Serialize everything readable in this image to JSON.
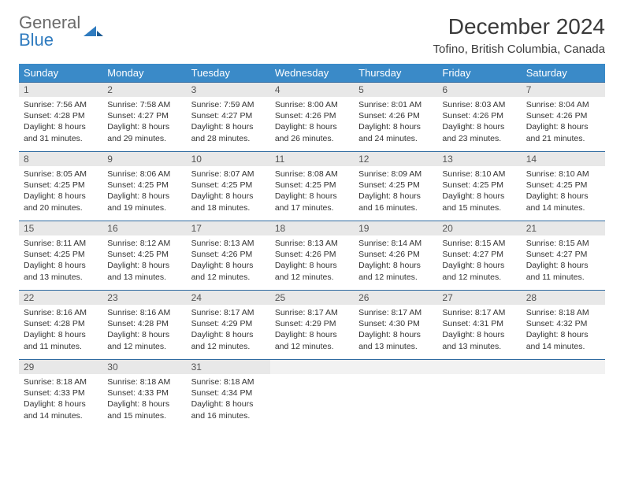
{
  "brand": {
    "line1": "General",
    "line2": "Blue"
  },
  "title": "December 2024",
  "subtitle": "Tofino, British Columbia, Canada",
  "colors": {
    "header_bg": "#3a8ac8",
    "header_text": "#ffffff",
    "daynum_bg": "#e8e8e8",
    "row_border": "#2f6aa0",
    "logo_gray": "#6b6b6b",
    "logo_blue": "#2f7bbf"
  },
  "typography": {
    "title_fontsize": 28,
    "subtitle_fontsize": 15,
    "header_fontsize": 13,
    "daynum_fontsize": 12,
    "body_fontsize": 10.5
  },
  "weekdays": [
    "Sunday",
    "Monday",
    "Tuesday",
    "Wednesday",
    "Thursday",
    "Friday",
    "Saturday"
  ],
  "weeks": [
    [
      {
        "n": "1",
        "sunrise": "7:56 AM",
        "sunset": "4:28 PM",
        "daylight": "8 hours and 31 minutes."
      },
      {
        "n": "2",
        "sunrise": "7:58 AM",
        "sunset": "4:27 PM",
        "daylight": "8 hours and 29 minutes."
      },
      {
        "n": "3",
        "sunrise": "7:59 AM",
        "sunset": "4:27 PM",
        "daylight": "8 hours and 28 minutes."
      },
      {
        "n": "4",
        "sunrise": "8:00 AM",
        "sunset": "4:26 PM",
        "daylight": "8 hours and 26 minutes."
      },
      {
        "n": "5",
        "sunrise": "8:01 AM",
        "sunset": "4:26 PM",
        "daylight": "8 hours and 24 minutes."
      },
      {
        "n": "6",
        "sunrise": "8:03 AM",
        "sunset": "4:26 PM",
        "daylight": "8 hours and 23 minutes."
      },
      {
        "n": "7",
        "sunrise": "8:04 AM",
        "sunset": "4:26 PM",
        "daylight": "8 hours and 21 minutes."
      }
    ],
    [
      {
        "n": "8",
        "sunrise": "8:05 AM",
        "sunset": "4:25 PM",
        "daylight": "8 hours and 20 minutes."
      },
      {
        "n": "9",
        "sunrise": "8:06 AM",
        "sunset": "4:25 PM",
        "daylight": "8 hours and 19 minutes."
      },
      {
        "n": "10",
        "sunrise": "8:07 AM",
        "sunset": "4:25 PM",
        "daylight": "8 hours and 18 minutes."
      },
      {
        "n": "11",
        "sunrise": "8:08 AM",
        "sunset": "4:25 PM",
        "daylight": "8 hours and 17 minutes."
      },
      {
        "n": "12",
        "sunrise": "8:09 AM",
        "sunset": "4:25 PM",
        "daylight": "8 hours and 16 minutes."
      },
      {
        "n": "13",
        "sunrise": "8:10 AM",
        "sunset": "4:25 PM",
        "daylight": "8 hours and 15 minutes."
      },
      {
        "n": "14",
        "sunrise": "8:10 AM",
        "sunset": "4:25 PM",
        "daylight": "8 hours and 14 minutes."
      }
    ],
    [
      {
        "n": "15",
        "sunrise": "8:11 AM",
        "sunset": "4:25 PM",
        "daylight": "8 hours and 13 minutes."
      },
      {
        "n": "16",
        "sunrise": "8:12 AM",
        "sunset": "4:25 PM",
        "daylight": "8 hours and 13 minutes."
      },
      {
        "n": "17",
        "sunrise": "8:13 AM",
        "sunset": "4:26 PM",
        "daylight": "8 hours and 12 minutes."
      },
      {
        "n": "18",
        "sunrise": "8:13 AM",
        "sunset": "4:26 PM",
        "daylight": "8 hours and 12 minutes."
      },
      {
        "n": "19",
        "sunrise": "8:14 AM",
        "sunset": "4:26 PM",
        "daylight": "8 hours and 12 minutes."
      },
      {
        "n": "20",
        "sunrise": "8:15 AM",
        "sunset": "4:27 PM",
        "daylight": "8 hours and 12 minutes."
      },
      {
        "n": "21",
        "sunrise": "8:15 AM",
        "sunset": "4:27 PM",
        "daylight": "8 hours and 11 minutes."
      }
    ],
    [
      {
        "n": "22",
        "sunrise": "8:16 AM",
        "sunset": "4:28 PM",
        "daylight": "8 hours and 11 minutes."
      },
      {
        "n": "23",
        "sunrise": "8:16 AM",
        "sunset": "4:28 PM",
        "daylight": "8 hours and 12 minutes."
      },
      {
        "n": "24",
        "sunrise": "8:17 AM",
        "sunset": "4:29 PM",
        "daylight": "8 hours and 12 minutes."
      },
      {
        "n": "25",
        "sunrise": "8:17 AM",
        "sunset": "4:29 PM",
        "daylight": "8 hours and 12 minutes."
      },
      {
        "n": "26",
        "sunrise": "8:17 AM",
        "sunset": "4:30 PM",
        "daylight": "8 hours and 13 minutes."
      },
      {
        "n": "27",
        "sunrise": "8:17 AM",
        "sunset": "4:31 PM",
        "daylight": "8 hours and 13 minutes."
      },
      {
        "n": "28",
        "sunrise": "8:18 AM",
        "sunset": "4:32 PM",
        "daylight": "8 hours and 14 minutes."
      }
    ],
    [
      {
        "n": "29",
        "sunrise": "8:18 AM",
        "sunset": "4:33 PM",
        "daylight": "8 hours and 14 minutes."
      },
      {
        "n": "30",
        "sunrise": "8:18 AM",
        "sunset": "4:33 PM",
        "daylight": "8 hours and 15 minutes."
      },
      {
        "n": "31",
        "sunrise": "8:18 AM",
        "sunset": "4:34 PM",
        "daylight": "8 hours and 16 minutes."
      },
      {
        "empty": true
      },
      {
        "empty": true
      },
      {
        "empty": true
      },
      {
        "empty": true
      }
    ]
  ],
  "labels": {
    "sunrise_prefix": "Sunrise: ",
    "sunset_prefix": "Sunset: ",
    "daylight_prefix": "Daylight: "
  }
}
